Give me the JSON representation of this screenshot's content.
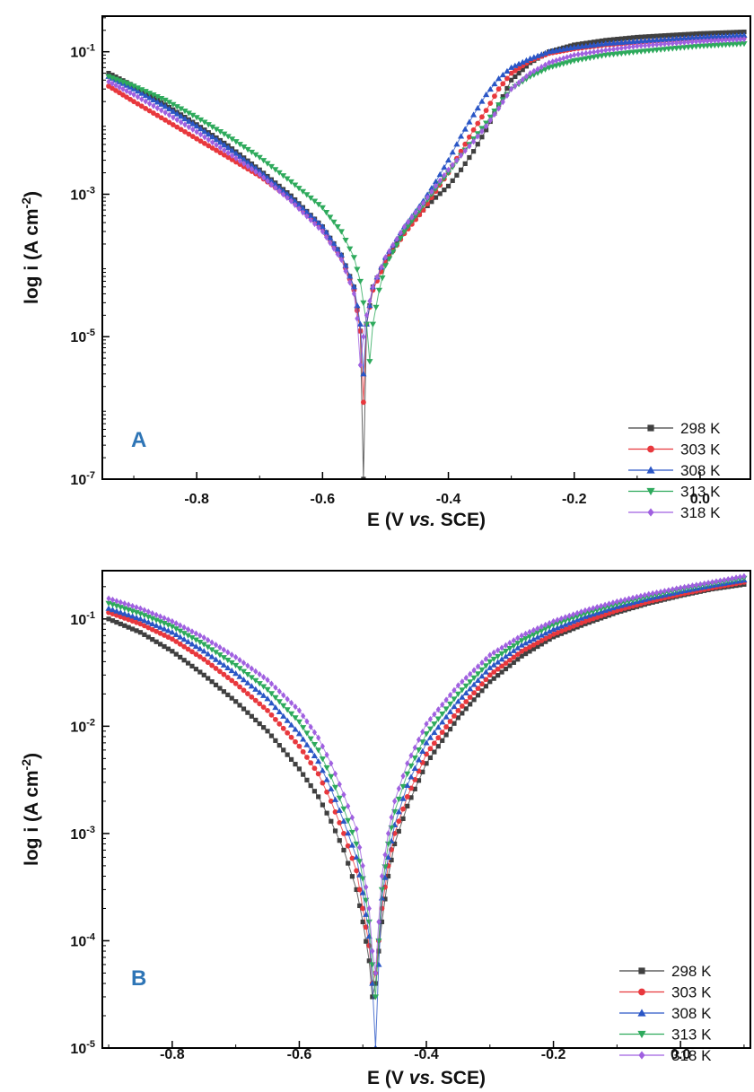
{
  "chart_data": [
    {
      "type": "scatter",
      "panel_label": "A",
      "xlabel": {
        "pre": "E (V ",
        "it": "vs.",
        "post": " SCE)"
      },
      "ylabel": "log i (A cm",
      "ylabel_sup": "-2",
      "ylabel_close": ")",
      "xlim": [
        -0.95,
        0.08
      ],
      "ylim_exp": [
        -7,
        -0.5
      ],
      "xticks": [
        -0.8,
        -0.6,
        -0.4,
        -0.2,
        0.0
      ],
      "xtick_labels": [
        "-0.8",
        "-0.6",
        "-0.4",
        "-0.2",
        "0.0"
      ],
      "yticks": [
        -7,
        -5,
        -3,
        -1
      ],
      "ytick_base": "10",
      "ytick_exps": [
        "-7",
        "-5",
        "-3",
        "-1"
      ],
      "legend_position": "bottom-right",
      "series": [
        {
          "name": "298 K",
          "color": "#404040",
          "marker": "square",
          "x": [
            -0.94,
            -0.9,
            -0.85,
            -0.8,
            -0.75,
            -0.7,
            -0.65,
            -0.6,
            -0.57,
            -0.55,
            -0.54,
            -0.535,
            -0.53,
            -0.52,
            -0.5,
            -0.47,
            -0.44,
            -0.42,
            -0.4,
            -0.38,
            -0.36,
            -0.34,
            -0.32,
            -0.3,
            -0.27,
            -0.24,
            -0.2,
            -0.15,
            -0.1,
            -0.05,
            0.0,
            0.07
          ],
          "y": [
            0.05,
            0.033,
            0.018,
            0.0095,
            0.0048,
            0.0022,
            0.00095,
            0.00035,
            0.00014,
            5e-05,
            1.2e-05,
            1e-07,
            1.5e-05,
            5e-05,
            0.00012,
            0.0003,
            0.0006,
            0.0009,
            0.0013,
            0.0022,
            0.004,
            0.008,
            0.018,
            0.04,
            0.07,
            0.1,
            0.125,
            0.145,
            0.16,
            0.17,
            0.18,
            0.19
          ]
        },
        {
          "name": "303 K",
          "color": "#e8383d",
          "marker": "circle",
          "x": [
            -0.94,
            -0.9,
            -0.85,
            -0.8,
            -0.75,
            -0.7,
            -0.65,
            -0.6,
            -0.57,
            -0.55,
            -0.54,
            -0.535,
            -0.53,
            -0.52,
            -0.5,
            -0.47,
            -0.44,
            -0.42,
            -0.4,
            -0.38,
            -0.36,
            -0.34,
            -0.32,
            -0.3,
            -0.27,
            -0.24,
            -0.2,
            -0.15,
            -0.1,
            -0.05,
            0.0,
            0.07
          ],
          "y": [
            0.033,
            0.02,
            0.011,
            0.006,
            0.0033,
            0.0018,
            0.00085,
            0.00033,
            0.00013,
            4.5e-05,
            1.2e-05,
            1.2e-06,
            1.5e-05,
            4.5e-05,
            0.00011,
            0.00028,
            0.0006,
            0.0011,
            0.002,
            0.004,
            0.008,
            0.015,
            0.03,
            0.05,
            0.075,
            0.095,
            0.11,
            0.125,
            0.135,
            0.145,
            0.155,
            0.16
          ]
        },
        {
          "name": "308 K",
          "color": "#2a56c6",
          "marker": "triangle-up",
          "x": [
            -0.94,
            -0.9,
            -0.85,
            -0.8,
            -0.75,
            -0.7,
            -0.65,
            -0.6,
            -0.57,
            -0.55,
            -0.54,
            -0.535,
            -0.53,
            -0.52,
            -0.5,
            -0.47,
            -0.44,
            -0.42,
            -0.4,
            -0.38,
            -0.36,
            -0.34,
            -0.32,
            -0.3,
            -0.27,
            -0.24,
            -0.2,
            -0.15,
            -0.1,
            -0.05,
            0.0,
            0.07
          ],
          "y": [
            0.045,
            0.03,
            0.017,
            0.009,
            0.0045,
            0.0021,
            0.0009,
            0.00035,
            0.00014,
            5e-05,
            1.5e-05,
            3e-06,
            1.5e-05,
            5e-05,
            0.00013,
            0.00035,
            0.0008,
            0.0015,
            0.003,
            0.0065,
            0.013,
            0.025,
            0.042,
            0.06,
            0.08,
            0.1,
            0.115,
            0.13,
            0.14,
            0.15,
            0.16,
            0.17
          ]
        },
        {
          "name": "313 K",
          "color": "#2eaa5c",
          "marker": "triangle-down",
          "x": [
            -0.94,
            -0.9,
            -0.85,
            -0.8,
            -0.75,
            -0.7,
            -0.65,
            -0.6,
            -0.57,
            -0.55,
            -0.54,
            -0.53,
            -0.525,
            -0.52,
            -0.51,
            -0.5,
            -0.47,
            -0.44,
            -0.42,
            -0.4,
            -0.38,
            -0.36,
            -0.34,
            -0.32,
            -0.3,
            -0.27,
            -0.24,
            -0.2,
            -0.15,
            -0.1,
            -0.05,
            0.0,
            0.07
          ],
          "y": [
            0.045,
            0.033,
            0.021,
            0.012,
            0.0065,
            0.0033,
            0.0015,
            0.00065,
            0.0003,
            0.00013,
            6e-05,
            1.5e-05,
            4.5e-06,
            1.5e-05,
            4.5e-05,
            0.0001,
            0.0003,
            0.0007,
            0.0012,
            0.002,
            0.0035,
            0.006,
            0.01,
            0.018,
            0.03,
            0.045,
            0.06,
            0.075,
            0.09,
            0.1,
            0.11,
            0.12,
            0.13
          ]
        },
        {
          "name": "318 K",
          "color": "#a060e0",
          "marker": "diamond",
          "x": [
            -0.94,
            -0.9,
            -0.85,
            -0.8,
            -0.75,
            -0.7,
            -0.65,
            -0.6,
            -0.57,
            -0.55,
            -0.545,
            -0.54,
            -0.535,
            -0.53,
            -0.52,
            -0.5,
            -0.47,
            -0.44,
            -0.42,
            -0.4,
            -0.38,
            -0.36,
            -0.34,
            -0.32,
            -0.3,
            -0.27,
            -0.24,
            -0.2,
            -0.15,
            -0.1,
            -0.05,
            0.0,
            0.07
          ],
          "y": [
            0.038,
            0.025,
            0.014,
            0.0075,
            0.0038,
            0.0019,
            0.0008,
            0.0003,
            0.00012,
            4e-05,
            1.8e-05,
            4e-06,
            1e-05,
            2e-05,
            5e-05,
            0.00013,
            0.00035,
            0.00075,
            0.0013,
            0.0022,
            0.0035,
            0.0055,
            0.009,
            0.016,
            0.03,
            0.05,
            0.07,
            0.09,
            0.105,
            0.12,
            0.13,
            0.14,
            0.15
          ]
        }
      ]
    },
    {
      "type": "scatter",
      "panel_label": "B",
      "xlabel": {
        "pre": "E (V ",
        "it": "vs.",
        "post": " SCE)"
      },
      "ylabel": "log i (A cm",
      "ylabel_sup": "-2",
      "ylabel_close": ")",
      "xlim": [
        -0.91,
        0.11
      ],
      "ylim_exp": [
        -5,
        -0.55
      ],
      "xticks": [
        -0.8,
        -0.6,
        -0.4,
        -0.2,
        0.0
      ],
      "xtick_labels": [
        "-0.8",
        "-0.6",
        "-0.4",
        "-0.2",
        "0.0"
      ],
      "yticks": [
        -5,
        -4,
        -3,
        -2,
        -1
      ],
      "ytick_base": "10",
      "ytick_exps": [
        "-5",
        "-4",
        "-3",
        "-2",
        "-1"
      ],
      "legend_position": "bottom-right",
      "series": [
        {
          "name": "298 K",
          "color": "#404040",
          "marker": "square",
          "x": [
            -0.9,
            -0.85,
            -0.8,
            -0.75,
            -0.7,
            -0.65,
            -0.6,
            -0.57,
            -0.55,
            -0.53,
            -0.51,
            -0.5,
            -0.49,
            -0.485,
            -0.48,
            -0.475,
            -0.47,
            -0.46,
            -0.45,
            -0.43,
            -0.4,
            -0.35,
            -0.3,
            -0.25,
            -0.2,
            -0.15,
            -0.1,
            -0.05,
            0.0,
            0.05,
            0.1
          ],
          "y": [
            0.1,
            0.075,
            0.05,
            0.03,
            0.017,
            0.009,
            0.004,
            0.0022,
            0.0013,
            0.0007,
            0.0003,
            0.00015,
            6.5e-05,
            3e-05,
            4e-05,
            8e-05,
            0.00015,
            0.0004,
            0.0008,
            0.0018,
            0.0045,
            0.012,
            0.026,
            0.045,
            0.068,
            0.09,
            0.115,
            0.14,
            0.165,
            0.19,
            0.21
          ]
        },
        {
          "name": "303 K",
          "color": "#e8383d",
          "marker": "circle",
          "x": [
            -0.9,
            -0.85,
            -0.8,
            -0.75,
            -0.7,
            -0.65,
            -0.6,
            -0.57,
            -0.55,
            -0.53,
            -0.51,
            -0.5,
            -0.49,
            -0.485,
            -0.48,
            -0.475,
            -0.47,
            -0.46,
            -0.45,
            -0.43,
            -0.4,
            -0.35,
            -0.3,
            -0.25,
            -0.2,
            -0.15,
            -0.1,
            -0.05,
            0.0,
            0.05,
            0.1
          ],
          "y": [
            0.115,
            0.09,
            0.065,
            0.042,
            0.025,
            0.014,
            0.0065,
            0.0036,
            0.002,
            0.001,
            0.00045,
            0.0002,
            9e-05,
            4e-05,
            5e-05,
            0.0001,
            0.0002,
            0.0005,
            0.001,
            0.0022,
            0.0055,
            0.014,
            0.03,
            0.05,
            0.072,
            0.095,
            0.12,
            0.145,
            0.17,
            0.195,
            0.22
          ]
        },
        {
          "name": "308 K",
          "color": "#2a56c6",
          "marker": "triangle-up",
          "x": [
            -0.9,
            -0.85,
            -0.8,
            -0.75,
            -0.7,
            -0.65,
            -0.6,
            -0.57,
            -0.55,
            -0.53,
            -0.51,
            -0.5,
            -0.49,
            -0.485,
            -0.48,
            -0.475,
            -0.47,
            -0.46,
            -0.45,
            -0.43,
            -0.4,
            -0.35,
            -0.3,
            -0.25,
            -0.2,
            -0.15,
            -0.1,
            -0.05,
            0.0,
            0.05,
            0.1
          ],
          "y": [
            0.125,
            0.1,
            0.075,
            0.05,
            0.031,
            0.018,
            0.0085,
            0.0047,
            0.0026,
            0.0013,
            0.0006,
            0.00028,
            0.00011,
            4e-05,
            8e-06,
            6e-05,
            0.00025,
            0.0006,
            0.0012,
            0.0028,
            0.007,
            0.017,
            0.035,
            0.057,
            0.08,
            0.105,
            0.13,
            0.155,
            0.18,
            0.205,
            0.23
          ]
        },
        {
          "name": "313 K",
          "color": "#2eaa5c",
          "marker": "triangle-down",
          "x": [
            -0.9,
            -0.85,
            -0.8,
            -0.75,
            -0.7,
            -0.65,
            -0.6,
            -0.57,
            -0.55,
            -0.53,
            -0.51,
            -0.5,
            -0.49,
            -0.485,
            -0.48,
            -0.475,
            -0.47,
            -0.46,
            -0.45,
            -0.43,
            -0.4,
            -0.35,
            -0.3,
            -0.25,
            -0.2,
            -0.15,
            -0.1,
            -0.05,
            0.0,
            0.05,
            0.1
          ],
          "y": [
            0.14,
            0.112,
            0.085,
            0.058,
            0.037,
            0.022,
            0.011,
            0.006,
            0.0034,
            0.0017,
            0.0008,
            0.00038,
            0.00015,
            6e-05,
            3e-05,
            0.0001,
            0.0003,
            0.0008,
            0.0016,
            0.0036,
            0.0085,
            0.02,
            0.04,
            0.063,
            0.088,
            0.112,
            0.137,
            0.162,
            0.188,
            0.213,
            0.24
          ]
        },
        {
          "name": "318 K",
          "color": "#a060e0",
          "marker": "diamond",
          "x": [
            -0.9,
            -0.85,
            -0.8,
            -0.75,
            -0.7,
            -0.65,
            -0.6,
            -0.57,
            -0.55,
            -0.53,
            -0.51,
            -0.5,
            -0.49,
            -0.485,
            -0.48,
            -0.475,
            -0.47,
            -0.46,
            -0.45,
            -0.43,
            -0.4,
            -0.35,
            -0.3,
            -0.25,
            -0.2,
            -0.15,
            -0.1,
            -0.05,
            0.0,
            0.05,
            0.1
          ],
          "y": [
            0.155,
            0.125,
            0.095,
            0.067,
            0.044,
            0.027,
            0.014,
            0.0078,
            0.0045,
            0.0023,
            0.0011,
            0.0005,
            0.0002,
            8e-05,
            5e-05,
            0.00015,
            0.0004,
            0.001,
            0.002,
            0.0045,
            0.0105,
            0.024,
            0.046,
            0.07,
            0.095,
            0.12,
            0.145,
            0.17,
            0.195,
            0.22,
            0.25
          ]
        }
      ]
    }
  ]
}
